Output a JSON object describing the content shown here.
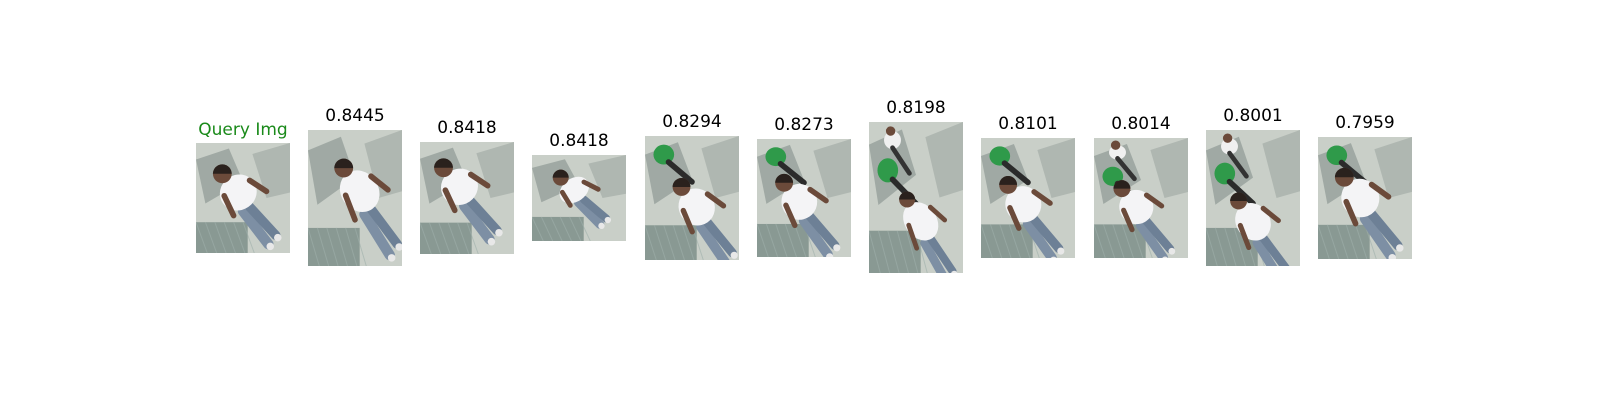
{
  "query": {
    "label": "Query Img",
    "label_color": "#1a8a1a"
  },
  "matches": [
    {
      "score": "0.8445"
    },
    {
      "score": "0.8418"
    },
    {
      "score": "0.8418"
    },
    {
      "score": "0.8294"
    },
    {
      "score": "0.8273"
    },
    {
      "score": "0.8198"
    },
    {
      "score": "0.8101"
    },
    {
      "score": "0.8014"
    },
    {
      "score": "0.8001"
    },
    {
      "score": "0.7959"
    }
  ],
  "colors": {
    "caption": "#000000",
    "ground": "#c9cfc8",
    "shadow": "#7e8a86",
    "net": "#5f7570",
    "shirt": "#f4f4f6",
    "skin": "#6b4a3a",
    "hair": "#2a211d",
    "jeans": "#7d8fa4",
    "green_shirt": "#2f9a4a"
  }
}
